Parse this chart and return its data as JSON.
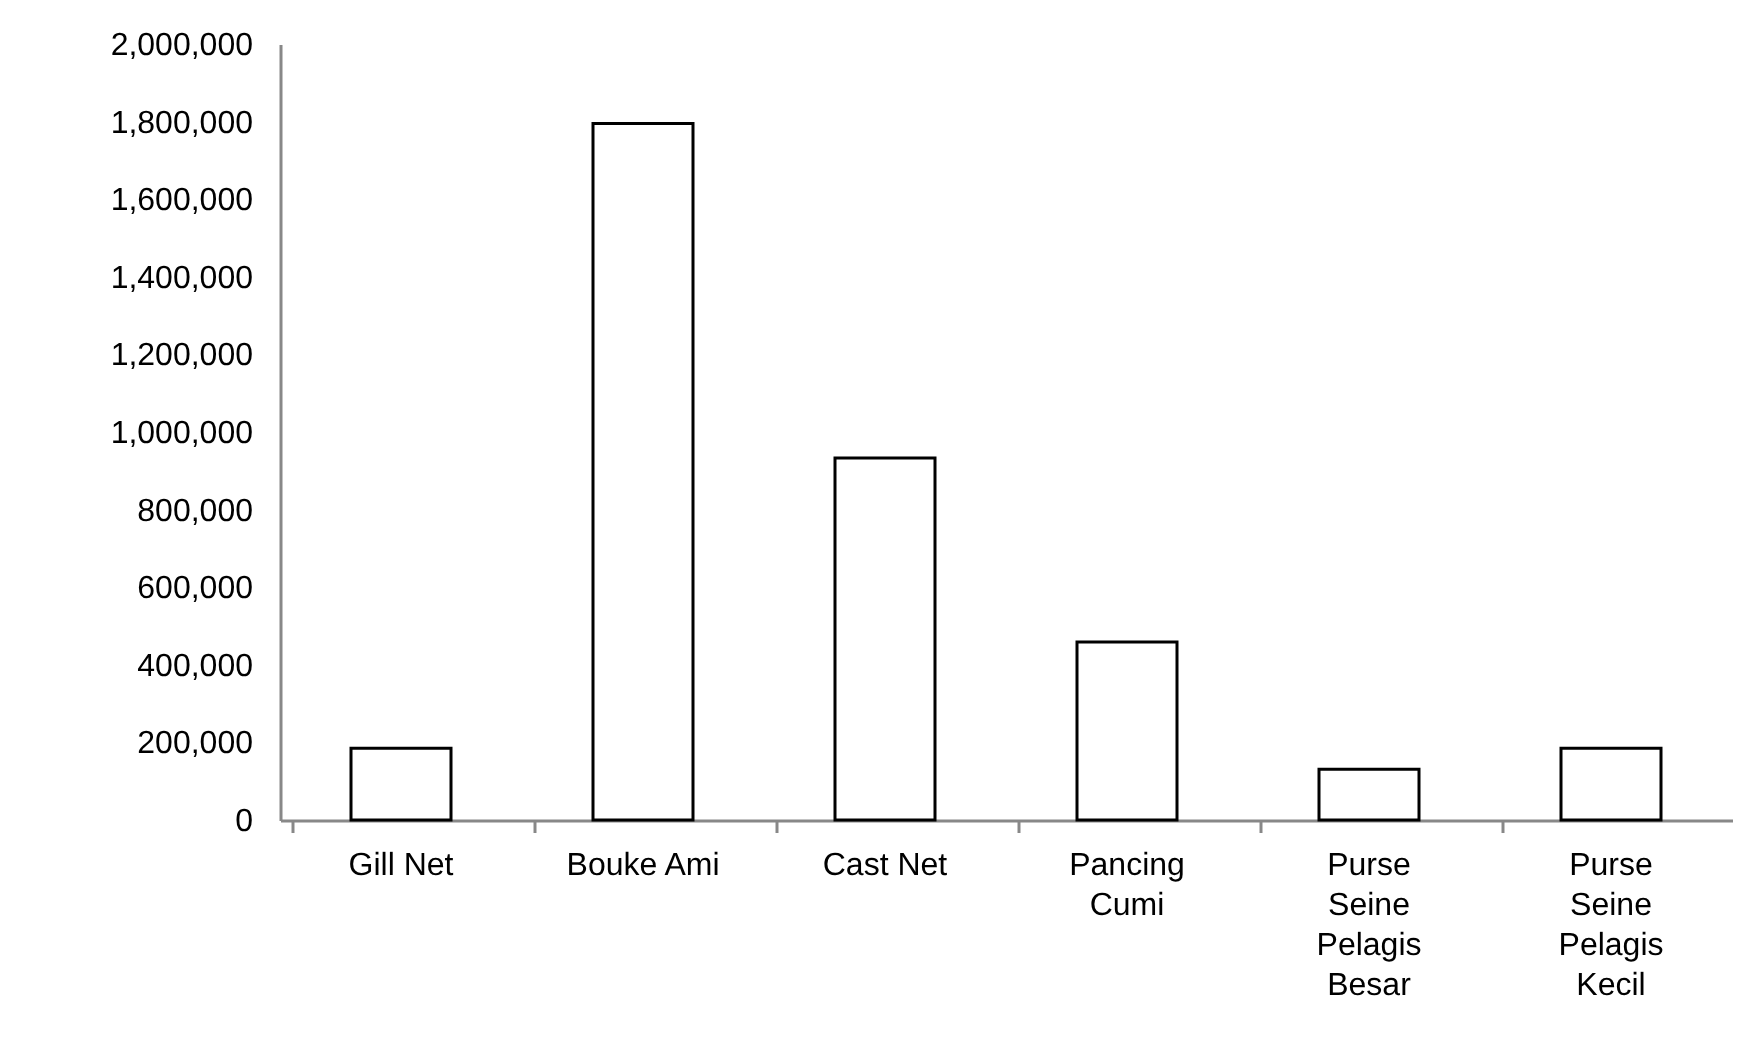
{
  "chart_data": {
    "type": "bar",
    "categories": [
      "Gill Net",
      "Bouke Ami",
      "Cast Net",
      "Pancing Cumi",
      "Purse Seine Pelagis Besar",
      "Purse Seine Pelagis Kecil"
    ],
    "values": [
      185000,
      1795000,
      933000,
      459000,
      131000,
      185000
    ],
    "color": "#ffffff",
    "ylim": [
      0,
      2000000
    ],
    "yticks": [
      0,
      {
        "value": 200000,
        "label": "200,000"
      },
      {
        "value": 400000,
        "label": "400,000"
      },
      {
        "value": 600000,
        "label": "600,000"
      },
      {
        "value": 800000,
        "label": "800,000"
      },
      {
        "value": 1000000,
        "label": "1,000,000"
      },
      {
        "value": 1200000,
        "label": "1,200,000"
      },
      {
        "value": 1400000,
        "label": "1,400,000"
      },
      {
        "value": 1600000,
        "label": "1,600,000"
      },
      {
        "value": 1800000,
        "label": "1,800,000"
      },
      {
        "value": 2000000,
        "label": "2,000,000"
      }
    ],
    "grid": false
  }
}
